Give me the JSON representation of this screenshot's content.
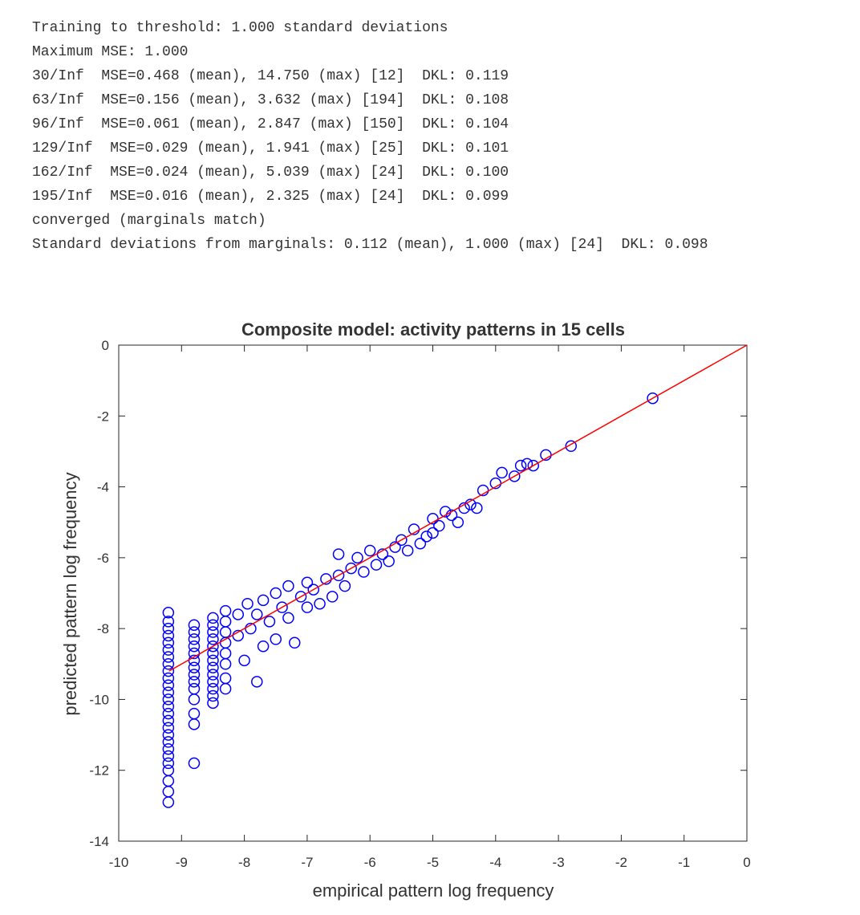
{
  "console": {
    "lines": [
      "Training to threshold: 1.000 standard deviations",
      "Maximum MSE: 1.000",
      "30/Inf  MSE=0.468 (mean), 14.750 (max) [12]  DKL: 0.119",
      "63/Inf  MSE=0.156 (mean), 3.632 (max) [194]  DKL: 0.108",
      "96/Inf  MSE=0.061 (mean), 2.847 (max) [150]  DKL: 0.104",
      "129/Inf  MSE=0.029 (mean), 1.941 (max) [25]  DKL: 0.101",
      "162/Inf  MSE=0.024 (mean), 5.039 (max) [24]  DKL: 0.100",
      "195/Inf  MSE=0.016 (mean), 2.325 (max) [24]  DKL: 0.099",
      "converged (marginals match)",
      "Standard deviations from marginals: 0.112 (mean), 1.000 (max) [24]  DKL: 0.098"
    ]
  },
  "chart_data": {
    "type": "scatter",
    "title": "Composite model: activity patterns in 15 cells",
    "x_label": "empirical pattern log frequency",
    "y_label": "predicted pattern log frequency",
    "xlim": [
      -10,
      0
    ],
    "ylim": [
      -14,
      0
    ],
    "xticks": [
      -10,
      -9,
      -8,
      -7,
      -6,
      -5,
      -4,
      -3,
      -2,
      -1,
      0
    ],
    "yticks": [
      0,
      -2,
      -4,
      -6,
      -8,
      -10,
      -12,
      -14
    ],
    "color": "#0000ff",
    "x": [
      -9.21,
      -9.21,
      -9.21,
      -9.21,
      -9.21,
      -9.21,
      -9.21,
      -9.21,
      -9.21,
      -9.21,
      -9.21,
      -9.21,
      -9.21,
      -9.21,
      -9.21,
      -9.21,
      -9.21,
      -9.21,
      -9.21,
      -9.21,
      -9.21,
      -9.21,
      -9.21,
      -9.21,
      -9.21,
      -9.21,
      -8.8,
      -8.8,
      -8.8,
      -8.8,
      -8.8,
      -8.8,
      -8.8,
      -8.8,
      -8.8,
      -8.8,
      -8.8,
      -8.8,
      -8.8,
      -8.8,
      -8.5,
      -8.5,
      -8.5,
      -8.5,
      -8.5,
      -8.5,
      -8.5,
      -8.5,
      -8.5,
      -8.5,
      -8.5,
      -8.5,
      -8.5,
      -8.3,
      -8.3,
      -8.3,
      -8.3,
      -8.3,
      -8.3,
      -8.3,
      -8.3,
      -8.1,
      -8.1,
      -8.0,
      -7.95,
      -7.9,
      -7.8,
      -7.8,
      -7.7,
      -7.7,
      -7.6,
      -7.5,
      -7.5,
      -7.4,
      -7.3,
      -7.3,
      -7.2,
      -7.1,
      -7.0,
      -7.0,
      -6.9,
      -6.8,
      -6.7,
      -6.6,
      -6.5,
      -6.5,
      -6.4,
      -6.3,
      -6.2,
      -6.1,
      -6.0,
      -5.9,
      -5.8,
      -5.7,
      -5.6,
      -5.5,
      -5.4,
      -5.3,
      -5.2,
      -5.1,
      -5.0,
      -5.0,
      -4.9,
      -4.8,
      -4.7,
      -4.6,
      -4.5,
      -4.4,
      -4.3,
      -4.2,
      -4.0,
      -3.9,
      -3.7,
      -3.6,
      -3.5,
      -3.4,
      -3.2,
      -2.8,
      -1.5
    ],
    "y": [
      -7.55,
      -7.8,
      -8.0,
      -8.2,
      -8.4,
      -8.6,
      -8.8,
      -9.0,
      -9.2,
      -9.4,
      -9.6,
      -9.8,
      -10.0,
      -10.2,
      -10.4,
      -10.6,
      -10.8,
      -11.0,
      -11.2,
      -11.4,
      -11.6,
      -11.8,
      -12.0,
      -12.3,
      -12.6,
      -12.9,
      -7.9,
      -8.1,
      -8.3,
      -8.5,
      -8.7,
      -8.9,
      -9.1,
      -9.3,
      -9.5,
      -9.7,
      -10.0,
      -10.4,
      -10.7,
      -11.8,
      -7.7,
      -7.9,
      -8.1,
      -8.3,
      -8.5,
      -8.7,
      -8.9,
      -9.1,
      -9.3,
      -9.5,
      -9.7,
      -9.9,
      -10.1,
      -7.5,
      -7.8,
      -8.1,
      -8.4,
      -8.7,
      -9.0,
      -9.4,
      -9.7,
      -7.6,
      -8.2,
      -8.9,
      -7.3,
      -8.0,
      -7.6,
      -9.5,
      -7.2,
      -8.5,
      -7.8,
      -7.0,
      -8.3,
      -7.4,
      -6.8,
      -7.7,
      -8.4,
      -7.1,
      -6.7,
      -7.4,
      -6.9,
      -7.3,
      -6.6,
      -7.1,
      -5.9,
      -6.5,
      -6.8,
      -6.3,
      -6.0,
      -6.4,
      -5.8,
      -6.2,
      -5.9,
      -6.1,
      -5.7,
      -5.5,
      -5.8,
      -5.2,
      -5.6,
      -5.4,
      -4.9,
      -5.3,
      -5.1,
      -4.7,
      -4.8,
      -5.0,
      -4.6,
      -4.5,
      -4.6,
      -4.1,
      -3.9,
      -3.6,
      -3.7,
      -3.4,
      -3.35,
      -3.4,
      -3.1,
      -2.85,
      -1.5
    ],
    "line": {
      "color": "#ff0000",
      "x": [
        -9.2,
        0
      ],
      "y": [
        -9.2,
        0
      ]
    }
  }
}
